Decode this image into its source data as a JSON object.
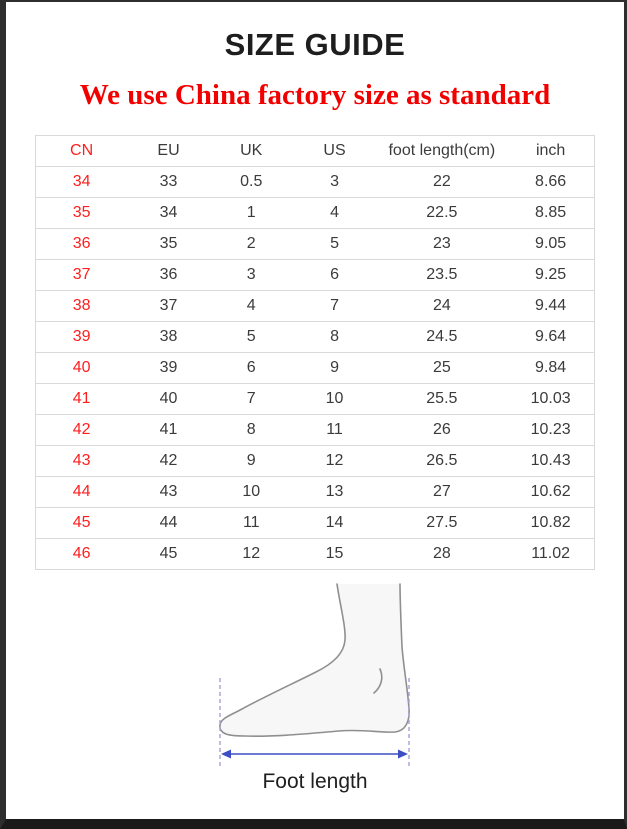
{
  "page": {
    "title": "SIZE GUIDE",
    "subtitle": "We use China factory size as standard"
  },
  "colors": {
    "title_black": "#1e1e1e",
    "subtitle_red": "#f20000",
    "cn_column_red": "#ff1e1e",
    "table_border_gray": "#d9d9d9",
    "frame_dark": "#2e2e2e",
    "arrow_blue": "#3d4ec4",
    "dashed_guide_blue": "#a3a3d9",
    "foot_fill": "#f7f7f7",
    "foot_outline": "#8f8f8f"
  },
  "size_table": {
    "columns": [
      "CN",
      "EU",
      "UK",
      "US",
      "foot length(cm)",
      "inch"
    ],
    "rows": [
      [
        "34",
        "33",
        "0.5",
        "3",
        "22",
        "8.66"
      ],
      [
        "35",
        "34",
        "1",
        "4",
        "22.5",
        "8.85"
      ],
      [
        "36",
        "35",
        "2",
        "5",
        "23",
        "9.05"
      ],
      [
        "37",
        "36",
        "3",
        "6",
        "23.5",
        "9.25"
      ],
      [
        "38",
        "37",
        "4",
        "7",
        "24",
        "9.44"
      ],
      [
        "39",
        "38",
        "5",
        "8",
        "24.5",
        "9.64"
      ],
      [
        "40",
        "39",
        "6",
        "9",
        "25",
        "9.84"
      ],
      [
        "41",
        "40",
        "7",
        "10",
        "25.5",
        "10.03"
      ],
      [
        "42",
        "41",
        "8",
        "11",
        "26",
        "10.23"
      ],
      [
        "43",
        "42",
        "9",
        "12",
        "26.5",
        "10.43"
      ],
      [
        "44",
        "43",
        "10",
        "13",
        "27",
        "10.62"
      ],
      [
        "45",
        "44",
        "11",
        "14",
        "27.5",
        "10.82"
      ],
      [
        "46",
        "45",
        "12",
        "15",
        "28",
        "11.02"
      ]
    ]
  },
  "foot_figure": {
    "label": "Foot length"
  }
}
